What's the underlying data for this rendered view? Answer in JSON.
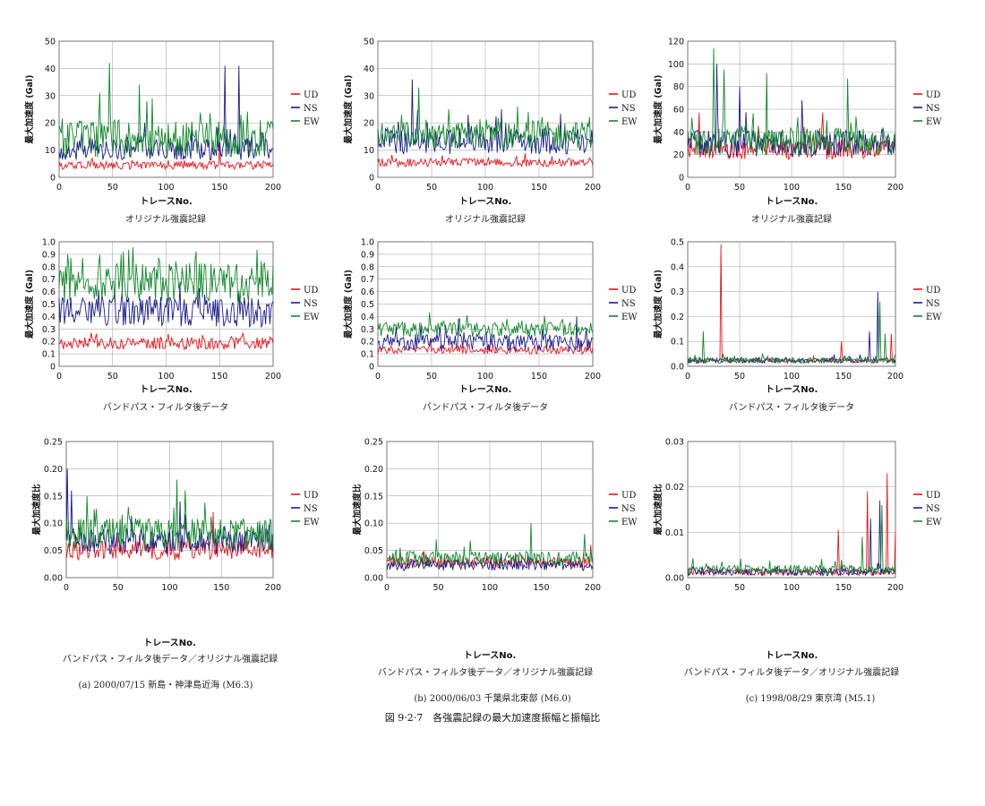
{
  "figure_caption": "図 9·2·7　各強震記録の最大加速度振幅と振幅比",
  "columns": [
    {
      "caption": "(a)  2000/07/15   新島・神津島近海 (M6.3)"
    },
    {
      "caption": "(b)  2000/06/03   千葉県北東部 (M6.0)"
    },
    {
      "caption": "(c)  1998/08/29   東京湾 (M5.1)"
    }
  ],
  "legend_labels": [
    "UD",
    "NS",
    "EW"
  ],
  "colors": {
    "UD": "#e8141b",
    "NS": "#1b1b8c",
    "EW": "#11882a",
    "grid": "#9a9a9a"
  },
  "chart_data": [
    {
      "type": "line",
      "panel": "a-top",
      "caption": "オリジナル強震記録",
      "xlabel": "トレースNo.",
      "ylabel": "最大加速度 (Gal)",
      "xlim": [
        0,
        200
      ],
      "ylim": [
        0,
        50
      ],
      "xticks": [
        "0",
        "50",
        "100",
        "150",
        "200"
      ],
      "yticks": [
        "0",
        "10",
        "20",
        "30",
        "40",
        "50"
      ],
      "series": [
        {
          "name": "UD",
          "level": 4,
          "noise": 1.5,
          "seed": 11,
          "peaks": [
            [
              150,
              13
            ]
          ]
        },
        {
          "name": "NS",
          "level": 9,
          "noise": 4,
          "seed": 12,
          "peaks": [
            [
              155,
              41
            ],
            [
              168,
              41
            ],
            [
              80,
              20
            ]
          ]
        },
        {
          "name": "EW",
          "level": 12,
          "noise": 7,
          "seed": 13,
          "peaks": [
            [
              47,
              42
            ],
            [
              75,
              34
            ],
            [
              38,
              31
            ],
            [
              170,
              23
            ]
          ]
        }
      ]
    },
    {
      "type": "line",
      "panel": "b-top",
      "caption": "オリジナル強震記録",
      "xlabel": "トレースNo.",
      "ylabel": "最大加速度 (Gal)",
      "xlim": [
        0,
        200
      ],
      "ylim": [
        0,
        50
      ],
      "xticks": [
        "0",
        "50",
        "100",
        "150",
        "200"
      ],
      "yticks": [
        "0",
        "10",
        "20",
        "30",
        "40",
        "50"
      ],
      "series": [
        {
          "name": "UD",
          "level": 5,
          "noise": 1.5,
          "seed": 21,
          "peaks": []
        },
        {
          "name": "NS",
          "level": 12,
          "noise": 5,
          "seed": 22,
          "peaks": [
            [
              32,
              36
            ],
            [
              115,
              25
            ]
          ]
        },
        {
          "name": "EW",
          "level": 14,
          "noise": 5,
          "seed": 23,
          "peaks": [
            [
              38,
              33
            ],
            [
              66,
              25
            ],
            [
              140,
              24
            ]
          ]
        }
      ]
    },
    {
      "type": "line",
      "panel": "c-top",
      "caption": "オリジナル強震記録",
      "xlabel": "トレースNo.",
      "ylabel": "最大加速度 (Gal)",
      "xlim": [
        0,
        200
      ],
      "ylim": [
        0,
        120
      ],
      "xticks": [
        "0",
        "50",
        "100",
        "150",
        "200"
      ],
      "yticks": [
        "0",
        "20",
        "40",
        "60",
        "80",
        "100",
        "120"
      ],
      "series": [
        {
          "name": "UD",
          "level": 22,
          "noise": 9,
          "seed": 31,
          "peaks": [
            [
              11,
              57
            ],
            [
              130,
              57
            ]
          ]
        },
        {
          "name": "NS",
          "level": 26,
          "noise": 12,
          "seed": 32,
          "peaks": [
            [
              28,
              100
            ],
            [
              50,
              80
            ],
            [
              110,
              68
            ]
          ]
        },
        {
          "name": "EW",
          "level": 28,
          "noise": 12,
          "seed": 33,
          "peaks": [
            [
              25,
              114
            ],
            [
              76,
              92
            ],
            [
              154,
              87
            ],
            [
              35,
              95
            ]
          ]
        }
      ]
    },
    {
      "type": "line",
      "panel": "a-mid",
      "caption": "バンドパス・フィルタ後データ",
      "xlabel": "トレースNo.",
      "ylabel": "最大加速度 (Gal)",
      "xlim": [
        0,
        200
      ],
      "ylim": [
        0,
        1
      ],
      "xticks": [
        "0",
        "50",
        "100",
        "150",
        "200"
      ],
      "yticks": [
        "0",
        "0.1",
        "0.2",
        "0.3",
        "0.4",
        "0.5",
        "0.6",
        "0.7",
        "0.8",
        "0.9",
        "1.0"
      ],
      "series": [
        {
          "name": "UD",
          "level": 0.17,
          "noise": 0.05,
          "seed": 41,
          "peaks": [
            [
              30,
              0.27
            ],
            [
              140,
              0.2
            ]
          ]
        },
        {
          "name": "NS",
          "level": 0.4,
          "noise": 0.12,
          "seed": 42,
          "peaks": [
            [
              52,
              0.6
            ],
            [
              3,
              0.55
            ]
          ]
        },
        {
          "name": "EW",
          "level": 0.62,
          "noise": 0.16,
          "seed": 43,
          "peaks": [
            [
              60,
              0.92
            ],
            [
              128,
              0.92
            ],
            [
              22,
              0.87
            ]
          ]
        }
      ]
    },
    {
      "type": "line",
      "panel": "b-mid",
      "caption": "バンドパス・フィルタ後データ",
      "xlabel": "トレースNo.",
      "ylabel": "最大加速度 (Gal)",
      "xlim": [
        0,
        200
      ],
      "ylim": [
        0,
        1
      ],
      "xticks": [
        "0",
        "50",
        "100",
        "150",
        "200"
      ],
      "yticks": [
        "0",
        "0.1",
        "0.2",
        "0.3",
        "0.4",
        "0.5",
        "0.6",
        "0.7",
        "0.8",
        "0.9",
        "1.0"
      ],
      "series": [
        {
          "name": "UD",
          "level": 0.12,
          "noise": 0.03,
          "seed": 51,
          "peaks": []
        },
        {
          "name": "NS",
          "level": 0.17,
          "noise": 0.07,
          "seed": 52,
          "peaks": [
            [
              75,
              0.38
            ],
            [
              185,
              0.4
            ]
          ]
        },
        {
          "name": "EW",
          "level": 0.28,
          "noise": 0.06,
          "seed": 53,
          "peaks": [
            [
              48,
              0.43
            ],
            [
              120,
              0.38
            ]
          ]
        }
      ]
    },
    {
      "type": "line",
      "panel": "c-mid",
      "caption": "バンドパス・フィルタ後データ",
      "xlabel": "トレースNo.",
      "ylabel": "最大加速度 (Gal)",
      "xlim": [
        0,
        200
      ],
      "ylim": [
        0,
        0.5
      ],
      "xticks": [
        "0",
        "50",
        "100",
        "150",
        "200"
      ],
      "yticks": [
        "0.0",
        "0.1",
        "0.2",
        "0.3",
        "0.4",
        "0.5"
      ],
      "series": [
        {
          "name": "UD",
          "level": 0.02,
          "noise": 0.008,
          "seed": 61,
          "peaks": [
            [
              32,
              0.49
            ],
            [
              148,
              0.1
            ],
            [
              196,
              0.13
            ]
          ]
        },
        {
          "name": "NS",
          "level": 0.02,
          "noise": 0.01,
          "seed": 62,
          "peaks": [
            [
              183,
              0.3
            ],
            [
              175,
              0.14
            ]
          ]
        },
        {
          "name": "EW",
          "level": 0.02,
          "noise": 0.012,
          "seed": 63,
          "peaks": [
            [
              15,
              0.14
            ],
            [
              185,
              0.26
            ],
            [
              190,
              0.13
            ]
          ]
        }
      ]
    },
    {
      "type": "line",
      "panel": "a-bot",
      "caption": "バンドパス・フィルタ後データ／オリジナル強震記録",
      "xlabel": "トレースNo.",
      "ylabel": "最大加速度比",
      "xlim": [
        0,
        200
      ],
      "ylim": [
        0,
        0.25
      ],
      "xticks": [
        "0",
        "50",
        "100",
        "150",
        "200"
      ],
      "yticks": [
        "0.00",
        "0.05",
        "0.10",
        "0.15",
        "0.20",
        "0.25"
      ],
      "series": [
        {
          "name": "UD",
          "level": 0.045,
          "noise": 0.018,
          "seed": 71,
          "peaks": [
            [
              142,
              0.12
            ]
          ]
        },
        {
          "name": "NS",
          "level": 0.06,
          "noise": 0.025,
          "seed": 72,
          "peaks": [
            [
              1,
              0.2
            ],
            [
              110,
              0.14
            ],
            [
              5,
              0.16
            ]
          ]
        },
        {
          "name": "EW",
          "level": 0.07,
          "noise": 0.03,
          "seed": 73,
          "peaks": [
            [
              107,
              0.18
            ],
            [
              20,
              0.15
            ],
            [
              115,
              0.16
            ]
          ]
        }
      ]
    },
    {
      "type": "line",
      "panel": "b-bot",
      "caption": "バンドパス・フィルタ後データ／オリジナル強震記録",
      "xlabel": "トレースNo.",
      "ylabel": "最大加速度比",
      "xlim": [
        0,
        200
      ],
      "ylim": [
        0,
        0.25
      ],
      "xticks": [
        "0",
        "50",
        "100",
        "150",
        "200"
      ],
      "yticks": [
        "0.00",
        "0.05",
        "0.10",
        "0.15",
        "0.20",
        "0.25"
      ],
      "series": [
        {
          "name": "UD",
          "level": 0.025,
          "noise": 0.01,
          "seed": 81,
          "peaks": [
            [
              198,
              0.06
            ]
          ]
        },
        {
          "name": "NS",
          "level": 0.02,
          "noise": 0.01,
          "seed": 82,
          "peaks": []
        },
        {
          "name": "EW",
          "level": 0.03,
          "noise": 0.014,
          "seed": 83,
          "peaks": [
            [
              140,
              0.1
            ],
            [
              48,
              0.07
            ],
            [
              192,
              0.08
            ]
          ]
        }
      ]
    },
    {
      "type": "line",
      "panel": "c-bot",
      "caption": "バンドパス・フィルタ後データ／オリジナル強震記録",
      "xlabel": "トレースNo.",
      "ylabel": "最大加速度比",
      "xlim": [
        0,
        200
      ],
      "ylim": [
        0,
        0.03
      ],
      "xticks": [
        "0",
        "50",
        "100",
        "150",
        "200"
      ],
      "yticks": [
        "0.00",
        "0.01",
        "0.02",
        "0.03"
      ],
      "series": [
        {
          "name": "UD",
          "level": 0.001,
          "noise": 0.0007,
          "seed": 91,
          "peaks": [
            [
              173,
              0.019
            ],
            [
              192,
              0.023
            ],
            [
              145,
              0.0105
            ],
            [
              200,
              0.01
            ]
          ]
        },
        {
          "name": "NS",
          "level": 0.001,
          "noise": 0.0008,
          "seed": 92,
          "peaks": [
            [
              185,
              0.017
            ],
            [
              176,
              0.013
            ]
          ]
        },
        {
          "name": "EW",
          "level": 0.0015,
          "noise": 0.001,
          "seed": 93,
          "peaks": [
            [
              187,
              0.016
            ],
            [
              168,
              0.009
            ]
          ]
        }
      ]
    }
  ]
}
